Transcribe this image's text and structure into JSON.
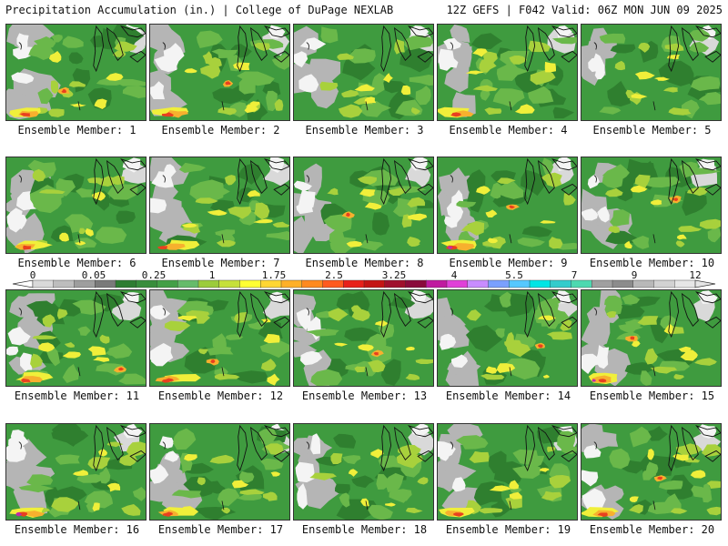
{
  "header": {
    "title": "Precipitation Accumulation (in.) | College of DuPage NEXLAB",
    "run_info": "12Z GEFS | F042 Valid: 06Z MON JUN 09 2025"
  },
  "panel_label_prefix": "Ensemble Member:",
  "members": [
    {
      "number": "1",
      "label": "Ensemble Member: 1"
    },
    {
      "number": "2",
      "label": "Ensemble Member: 2"
    },
    {
      "number": "3",
      "label": "Ensemble Member: 3"
    },
    {
      "number": "4",
      "label": "Ensemble Member: 4"
    },
    {
      "number": "5",
      "label": "Ensemble Member: 5"
    },
    {
      "number": "6",
      "label": "Ensemble Member: 6"
    },
    {
      "number": "7",
      "label": "Ensemble Member: 7"
    },
    {
      "number": "8",
      "label": "Ensemble Member: 8"
    },
    {
      "number": "9",
      "label": "Ensemble Member: 9"
    },
    {
      "number": "10",
      "label": "Ensemble Member: 10"
    },
    {
      "number": "11",
      "label": "Ensemble Member: 11"
    },
    {
      "number": "12",
      "label": "Ensemble Member: 12"
    },
    {
      "number": "13",
      "label": "Ensemble Member: 13"
    },
    {
      "number": "14",
      "label": "Ensemble Member: 14"
    },
    {
      "number": "15",
      "label": "Ensemble Member: 15"
    },
    {
      "number": "16",
      "label": "Ensemble Member: 16"
    },
    {
      "number": "17",
      "label": "Ensemble Member: 17"
    },
    {
      "number": "18",
      "label": "Ensemble Member: 18"
    },
    {
      "number": "19",
      "label": "Ensemble Member: 19"
    },
    {
      "number": "20",
      "label": "Ensemble Member: 20"
    }
  ],
  "colorbar": {
    "labels": [
      "0",
      "0.05",
      "0.25",
      "1",
      "1.75",
      "2.5",
      "3.25",
      "4",
      "5.5",
      "7",
      "9",
      "12"
    ],
    "colors": [
      "#d9d9d9",
      "#bdbdbd",
      "#9e9e9e",
      "#7a7a7a",
      "#2e7d32",
      "#388e3c",
      "#43a047",
      "#66bb6a",
      "#9ccc3c",
      "#c6e03a",
      "#ffff33",
      "#ffd633",
      "#ffb028",
      "#ff8a1f",
      "#ff5a1f",
      "#e8201a",
      "#c41414",
      "#a00f2d",
      "#8a0a3c",
      "#c01aa0",
      "#e040d8",
      "#c88cff",
      "#7aa0ff",
      "#56c8ff",
      "#00e5e5",
      "#33cccc",
      "#4dd9b0",
      "#a0a0a0",
      "#8c8c8c",
      "#b8b8b8",
      "#d2d2d2",
      "#e6e6e6"
    ]
  },
  "map_colors": {
    "gray": "#b5b5b5",
    "light_gray": "#d9d9d9",
    "white": "#f4f4f4",
    "dark_green": "#2f7f2f",
    "green": "#3f9b3f",
    "light_green": "#6ab84a",
    "yellow_green": "#a8d13c",
    "yellow": "#f0ef3a",
    "orange": "#f7b02e",
    "red": "#e8401f",
    "magenta": "#c02aa8"
  }
}
